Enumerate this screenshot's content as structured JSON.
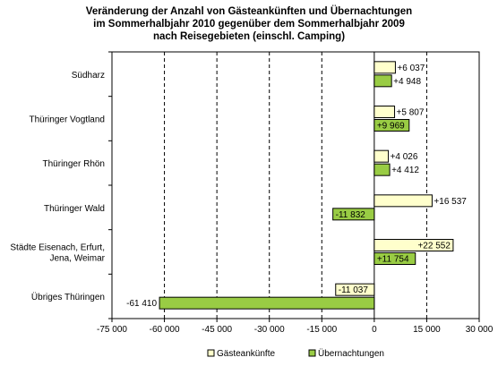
{
  "chart_data": {
    "type": "bar",
    "orientation": "horizontal",
    "title_lines": [
      "Veränderung der Anzahl von Gästeankünften  und Übernachtungen",
      "im Sommerhalbjahr 2010 gegenüber dem Sommerhalbjahr 2009",
      "nach Reisegebieten  (einschl. Camping)"
    ],
    "categories": [
      [
        "Südharz"
      ],
      [
        "Thüringer Vogtland"
      ],
      [
        "Thüringer Rhön"
      ],
      [
        "Thüringer Wald"
      ],
      [
        "Städte Eisenach, Erfurt,",
        "Jena, Weimar"
      ],
      [
        "Übriges Thüringen"
      ]
    ],
    "series": [
      {
        "name": "Gästeankünfte",
        "color": "#ffffcc",
        "values": [
          6037,
          5807,
          4026,
          16537,
          22552,
          -11037
        ],
        "labels": [
          "+6 037",
          "+5 807",
          "+4 026",
          "+16 537",
          "+22 552",
          "-11 037"
        ]
      },
      {
        "name": "Übernachtungen",
        "color": "#99cc44",
        "values": [
          4948,
          9969,
          4412,
          -11832,
          11754,
          -61410
        ],
        "labels": [
          "+4 948",
          "+9 969",
          "+4 412",
          "-11 832",
          "+11 754",
          "-61 410"
        ]
      }
    ],
    "xlim": [
      -75000,
      30000
    ],
    "xticks": [
      -75000,
      -60000,
      -45000,
      -30000,
      -15000,
      0,
      15000,
      30000
    ],
    "xtick_labels": [
      "-75 000",
      "-60 000",
      "-45 000",
      "-30 000",
      "-15 000",
      "0",
      "15 000",
      "30 000"
    ],
    "grid": "vertical dashed",
    "legend": "bottom"
  }
}
